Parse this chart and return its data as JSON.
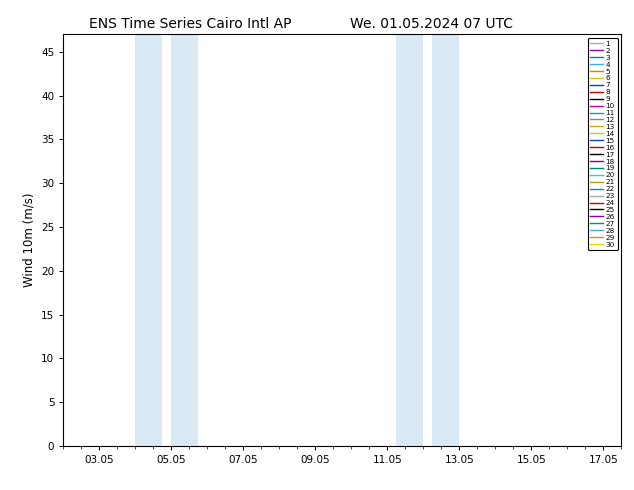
{
  "title_left": "ENS Time Series Cairo Intl AP",
  "title_right": "We. 01.05.2024 07 UTC",
  "ylabel": "Wind 10m (m/s)",
  "ylim": [
    0,
    47
  ],
  "yticks": [
    0,
    5,
    10,
    15,
    20,
    25,
    30,
    35,
    40,
    45
  ],
  "x_tick_labels": [
    "03.05",
    "05.05",
    "07.05",
    "09.05",
    "11.05",
    "13.05",
    "15.05",
    "17.05"
  ],
  "x_tick_positions": [
    3,
    5,
    7,
    9,
    11,
    13,
    15,
    17
  ],
  "x_min": 2.0,
  "x_max": 17.5,
  "shade_bands": [
    [
      4.0,
      4.75
    ],
    [
      5.0,
      5.75
    ],
    [
      11.25,
      12.0
    ],
    [
      12.25,
      13.0
    ]
  ],
  "shade_color": "#daeaf5",
  "background_color": "#ffffff",
  "title_fontsize": 10,
  "legend_labels": [
    "1",
    "2",
    "3",
    "4",
    "5",
    "6",
    "7",
    "8",
    "9",
    "10",
    "11",
    "12",
    "13",
    "14",
    "15",
    "16",
    "17",
    "18",
    "19",
    "20",
    "21",
    "22",
    "23",
    "24",
    "25",
    "26",
    "27",
    "28",
    "29",
    "30"
  ],
  "legend_colors": [
    "#aaaaaa",
    "#8800bb",
    "#008899",
    "#44aaff",
    "#cc8800",
    "#cccc00",
    "#0044cc",
    "#cc0000",
    "#000000",
    "#cc00cc",
    "#00aaaa",
    "#888888",
    "#ccaa00",
    "#cccc00",
    "#0044cc",
    "#bb0000",
    "#000000",
    "#880099",
    "#008877",
    "#44bbff",
    "#aaaa00",
    "#009988",
    "#aaaaaa",
    "#cc0000",
    "#000000",
    "#880099",
    "#009966",
    "#44aaff",
    "#cc9900",
    "#dddd00"
  ]
}
